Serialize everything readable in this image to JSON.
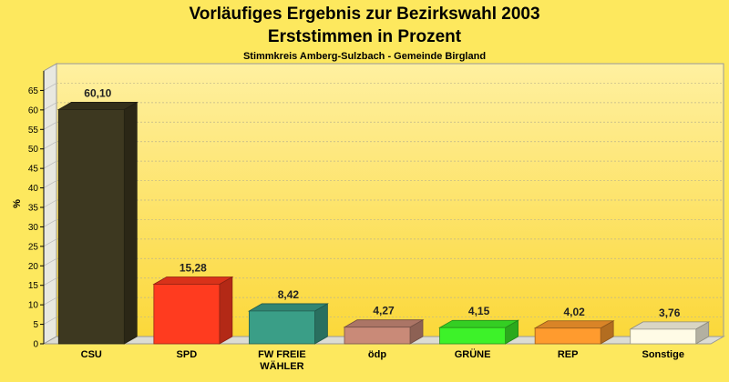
{
  "chart_data": {
    "type": "bar",
    "title": "Vorläufiges Ergebnis zur Bezirkswahl 2003",
    "title2": "Erststimmen in Prozent",
    "subtitle": "Stimmkreis Amberg-Sulzbach - Gemeinde Birgland",
    "ylabel": "%",
    "ylim": [
      0,
      70
    ],
    "yticks": [
      "0",
      "5",
      "10",
      "15",
      "20",
      "25",
      "30",
      "35",
      "40",
      "45",
      "50",
      "55",
      "60",
      "65"
    ],
    "grid": true,
    "categories": [
      [
        "CSU"
      ],
      [
        "SPD"
      ],
      [
        "FW FREIE",
        "WÄHLER"
      ],
      [
        "ödp"
      ],
      [
        "GRÜNE"
      ],
      [
        "REP"
      ],
      [
        "Sonstige"
      ]
    ],
    "values": [
      60.1,
      15.28,
      8.42,
      4.27,
      4.15,
      4.02,
      3.76
    ],
    "value_labels": [
      "60,10",
      "15,28",
      "8,42",
      "4,27",
      "4,15",
      "4,02",
      "3,76"
    ],
    "colors": [
      "#3d3820",
      "#ff3b1f",
      "#3a9e87",
      "#c98a78",
      "#3df229",
      "#ff9b2e",
      "#fffbe6"
    ],
    "background_color": "#fde85e"
  }
}
